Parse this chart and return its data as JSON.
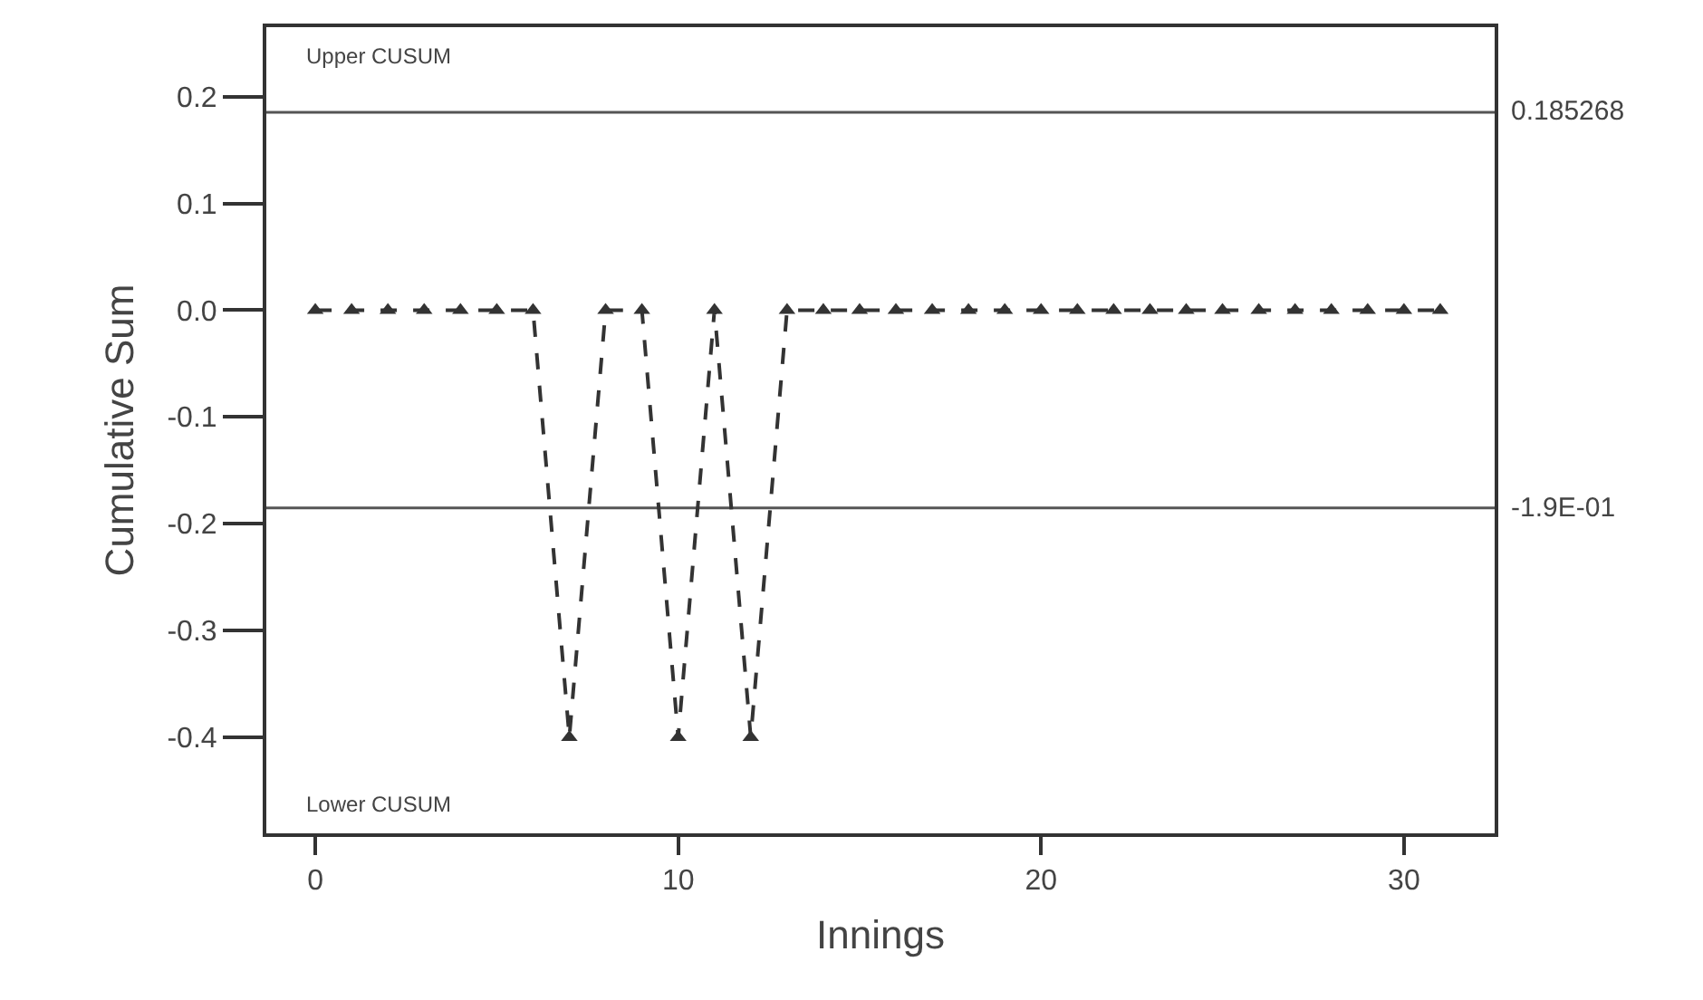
{
  "chart_data": {
    "type": "line",
    "xlabel": "Innings",
    "ylabel": "Cumulative Sum",
    "x": [
      0,
      1,
      2,
      3,
      4,
      5,
      6,
      7,
      8,
      9,
      10,
      11,
      12,
      13,
      14,
      15,
      16,
      17,
      18,
      19,
      20,
      21,
      22,
      23,
      24,
      25,
      26,
      27,
      28,
      29,
      30,
      31
    ],
    "series": [
      {
        "color": "#333333",
        "values": [
          0,
          0,
          0,
          0,
          0,
          0,
          0,
          -0.4,
          0,
          0,
          -0.4,
          0,
          -0.4,
          0,
          0,
          0,
          0,
          0,
          0,
          0,
          0,
          0,
          0,
          0,
          0,
          0,
          0,
          0,
          0,
          0,
          0,
          0
        ]
      }
    ],
    "xlim": [
      -1.35,
      32.5
    ],
    "xticks": [
      0,
      10,
      20,
      30
    ],
    "ylim": [
      -0.49,
      0.265
    ],
    "yticks": [
      {
        "value": -0.4,
        "label": "-0.4"
      },
      {
        "value": -0.3,
        "label": "-0.3"
      },
      {
        "value": -0.2,
        "label": "-0.2"
      },
      {
        "value": -0.1,
        "label": "-0.1"
      },
      {
        "value": 0,
        "label": "0.0"
      },
      {
        "value": 0.1,
        "label": "0.1"
      },
      {
        "value": 0.2,
        "label": "0.2"
      }
    ],
    "ref_lines": [
      {
        "axis": "y",
        "value": 0.185268,
        "label": "0.185268",
        "color": "#555555"
      },
      {
        "axis": "y",
        "value": -0.185268,
        "label": "-1.9E-01",
        "color": "#555555"
      }
    ],
    "annotations": [
      "Upper CUSUM",
      "Lower CUSUM"
    ],
    "marker": "triangle",
    "line_style": "dashed"
  }
}
